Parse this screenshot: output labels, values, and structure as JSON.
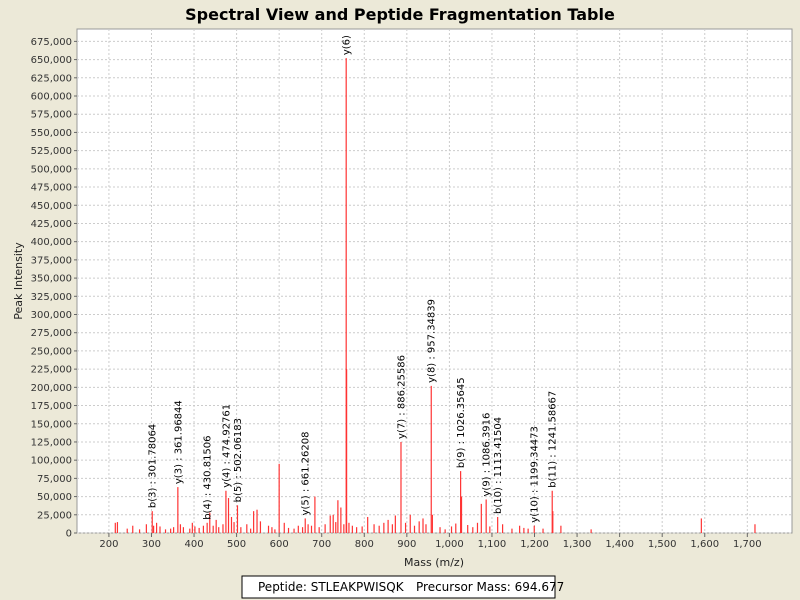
{
  "chart_data": {
    "type": "bar",
    "title": "Spectral View and Peptide Fragmentation Table",
    "xlabel": "Mass (m/z)",
    "ylabel": "Peak Intensity",
    "xlim": [
      125,
      1805
    ],
    "ylim": [
      0,
      692000
    ],
    "x_ticks": [
      200,
      300,
      400,
      500,
      600,
      700,
      800,
      900,
      1000,
      1100,
      1200,
      1300,
      1400,
      1500,
      1600,
      1700
    ],
    "x_tick_labels": [
      "200",
      "300",
      "400",
      "500",
      "600",
      "700",
      "800",
      "900",
      "1,000",
      "1,100",
      "1,200",
      "1,300",
      "1,400",
      "1,500",
      "1,600",
      "1,700"
    ],
    "y_ticks": [
      0,
      25000,
      50000,
      75000,
      100000,
      125000,
      150000,
      175000,
      200000,
      225000,
      250000,
      275000,
      300000,
      325000,
      350000,
      375000,
      400000,
      425000,
      450000,
      475000,
      500000,
      525000,
      550000,
      575000,
      600000,
      625000,
      650000,
      675000
    ],
    "y_tick_labels": [
      "0",
      "25,000",
      "50,000",
      "75,000",
      "100,000",
      "125,000",
      "150,000",
      "175,000",
      "200,000",
      "225,000",
      "250,000",
      "275,000",
      "300,000",
      "325,000",
      "350,000",
      "375,000",
      "400,000",
      "425,000",
      "450,000",
      "475,000",
      "500,000",
      "525,000",
      "550,000",
      "575,000",
      "600,000",
      "625,000",
      "650,000",
      "675,000"
    ],
    "grid": true,
    "peak_color": "#ff3333",
    "peaks": [
      {
        "mz": 215,
        "intensity": 14000
      },
      {
        "mz": 220,
        "intensity": 15000
      },
      {
        "mz": 243,
        "intensity": 6000
      },
      {
        "mz": 256,
        "intensity": 10000
      },
      {
        "mz": 272,
        "intensity": 5000
      },
      {
        "mz": 288,
        "intensity": 12000
      },
      {
        "mz": 301.78,
        "intensity": 30000
      },
      {
        "mz": 305,
        "intensity": 10000
      },
      {
        "mz": 312,
        "intensity": 14000
      },
      {
        "mz": 320,
        "intensity": 9000
      },
      {
        "mz": 333,
        "intensity": 5000
      },
      {
        "mz": 345,
        "intensity": 6000
      },
      {
        "mz": 352,
        "intensity": 8000
      },
      {
        "mz": 361.97,
        "intensity": 63000
      },
      {
        "mz": 368,
        "intensity": 12000
      },
      {
        "mz": 375,
        "intensity": 8000
      },
      {
        "mz": 390,
        "intensity": 6000
      },
      {
        "mz": 396,
        "intensity": 14000
      },
      {
        "mz": 402,
        "intensity": 9000
      },
      {
        "mz": 412,
        "intensity": 7000
      },
      {
        "mz": 422,
        "intensity": 10000
      },
      {
        "mz": 430.82,
        "intensity": 14000
      },
      {
        "mz": 437,
        "intensity": 28000
      },
      {
        "mz": 445,
        "intensity": 10000
      },
      {
        "mz": 452,
        "intensity": 18000
      },
      {
        "mz": 458,
        "intensity": 8000
      },
      {
        "mz": 468,
        "intensity": 12000
      },
      {
        "mz": 474.93,
        "intensity": 58000
      },
      {
        "mz": 481,
        "intensity": 48000
      },
      {
        "mz": 488,
        "intensity": 22000
      },
      {
        "mz": 494,
        "intensity": 15000
      },
      {
        "mz": 502.06,
        "intensity": 38000
      },
      {
        "mz": 510,
        "intensity": 8000
      },
      {
        "mz": 524,
        "intensity": 12000
      },
      {
        "mz": 533,
        "intensity": 6000
      },
      {
        "mz": 540,
        "intensity": 30000
      },
      {
        "mz": 548,
        "intensity": 32000
      },
      {
        "mz": 556,
        "intensity": 16000
      },
      {
        "mz": 575,
        "intensity": 10000
      },
      {
        "mz": 583,
        "intensity": 8000
      },
      {
        "mz": 590,
        "intensity": 5000
      },
      {
        "mz": 600,
        "intensity": 95000
      },
      {
        "mz": 612,
        "intensity": 14000
      },
      {
        "mz": 622,
        "intensity": 7000
      },
      {
        "mz": 635,
        "intensity": 6000
      },
      {
        "mz": 645,
        "intensity": 10000
      },
      {
        "mz": 655,
        "intensity": 8000
      },
      {
        "mz": 661.26,
        "intensity": 20000
      },
      {
        "mz": 668,
        "intensity": 12000
      },
      {
        "mz": 676,
        "intensity": 10000
      },
      {
        "mz": 684,
        "intensity": 50000
      },
      {
        "mz": 694,
        "intensity": 8000
      },
      {
        "mz": 708,
        "intensity": 12000
      },
      {
        "mz": 720,
        "intensity": 24000
      },
      {
        "mz": 727,
        "intensity": 25000
      },
      {
        "mz": 733,
        "intensity": 15000
      },
      {
        "mz": 738,
        "intensity": 45000
      },
      {
        "mz": 745,
        "intensity": 35000
      },
      {
        "mz": 752,
        "intensity": 12000
      },
      {
        "mz": 757.5,
        "intensity": 652000
      },
      {
        "mz": 758.5,
        "intensity": 225000
      },
      {
        "mz": 764,
        "intensity": 14000
      },
      {
        "mz": 772,
        "intensity": 10000
      },
      {
        "mz": 782,
        "intensity": 8000
      },
      {
        "mz": 795,
        "intensity": 9000
      },
      {
        "mz": 808,
        "intensity": 22000
      },
      {
        "mz": 823,
        "intensity": 12000
      },
      {
        "mz": 835,
        "intensity": 10000
      },
      {
        "mz": 846,
        "intensity": 14000
      },
      {
        "mz": 856,
        "intensity": 18000
      },
      {
        "mz": 866,
        "intensity": 12000
      },
      {
        "mz": 873,
        "intensity": 24000
      },
      {
        "mz": 886.26,
        "intensity": 125000
      },
      {
        "mz": 897,
        "intensity": 14000
      },
      {
        "mz": 908,
        "intensity": 25000
      },
      {
        "mz": 918,
        "intensity": 10000
      },
      {
        "mz": 929,
        "intensity": 16000
      },
      {
        "mz": 938,
        "intensity": 20000
      },
      {
        "mz": 945,
        "intensity": 12000
      },
      {
        "mz": 957.35,
        "intensity": 202000
      },
      {
        "mz": 960,
        "intensity": 25000
      },
      {
        "mz": 978,
        "intensity": 8000
      },
      {
        "mz": 990,
        "intensity": 5000
      },
      {
        "mz": 1005,
        "intensity": 9000
      },
      {
        "mz": 1015,
        "intensity": 13000
      },
      {
        "mz": 1026.36,
        "intensity": 85000
      },
      {
        "mz": 1028.5,
        "intensity": 50000
      },
      {
        "mz": 1043,
        "intensity": 11000
      },
      {
        "mz": 1055,
        "intensity": 8000
      },
      {
        "mz": 1066,
        "intensity": 14000
      },
      {
        "mz": 1075,
        "intensity": 40000
      },
      {
        "mz": 1086.39,
        "intensity": 46000
      },
      {
        "mz": 1095,
        "intensity": 9000
      },
      {
        "mz": 1113.42,
        "intensity": 22000
      },
      {
        "mz": 1125,
        "intensity": 12000
      },
      {
        "mz": 1147,
        "intensity": 6000
      },
      {
        "mz": 1165,
        "intensity": 10000
      },
      {
        "mz": 1175,
        "intensity": 7000
      },
      {
        "mz": 1185,
        "intensity": 6000
      },
      {
        "mz": 1199.34,
        "intensity": 10000
      },
      {
        "mz": 1220,
        "intensity": 6000
      },
      {
        "mz": 1241.59,
        "intensity": 58000
      },
      {
        "mz": 1243,
        "intensity": 30000
      },
      {
        "mz": 1262,
        "intensity": 10000
      },
      {
        "mz": 1333,
        "intensity": 5000
      },
      {
        "mz": 1592,
        "intensity": 20000
      },
      {
        "mz": 1718,
        "intensity": 12000
      }
    ],
    "annotations": [
      {
        "label": "b(3) : 301.78064",
        "mz": 301.78,
        "intensity": 30000
      },
      {
        "label": "y(3) : 361.96844",
        "mz": 361.97,
        "intensity": 63000
      },
      {
        "label": "b(4) : 430.81506",
        "mz": 430.82,
        "intensity": 14000
      },
      {
        "label": "y(4) : 474.92761",
        "mz": 474.93,
        "intensity": 58000
      },
      {
        "label": "b(5) : 502.06183",
        "mz": 502.06,
        "intensity": 38000
      },
      {
        "label": "y(5) : 661.26208",
        "mz": 661.26,
        "intensity": 20000
      },
      {
        "label": "y(6)",
        "mz": 757.5,
        "intensity": 652000
      },
      {
        "label": "y(7) : 886.25586",
        "mz": 886.26,
        "intensity": 125000
      },
      {
        "label": "y(8) : 957.34839",
        "mz": 957.35,
        "intensity": 202000
      },
      {
        "label": "b(9) : 1026.35645",
        "mz": 1026.36,
        "intensity": 85000
      },
      {
        "label": "y(9) : 1086.3916",
        "mz": 1086.39,
        "intensity": 46000
      },
      {
        "label": "b(10) : 1113.41504",
        "mz": 1113.42,
        "intensity": 22000
      },
      {
        "label": "y(10) : 1199.34473",
        "mz": 1199.34,
        "intensity": 10000
      },
      {
        "label": "b(11) : 1241.58667",
        "mz": 1241.59,
        "intensity": 58000
      }
    ]
  },
  "legend": {
    "peptide_label": "Peptide: STLEAKPWISQK",
    "precursor_label": "Precursor Mass: 694.677"
  }
}
